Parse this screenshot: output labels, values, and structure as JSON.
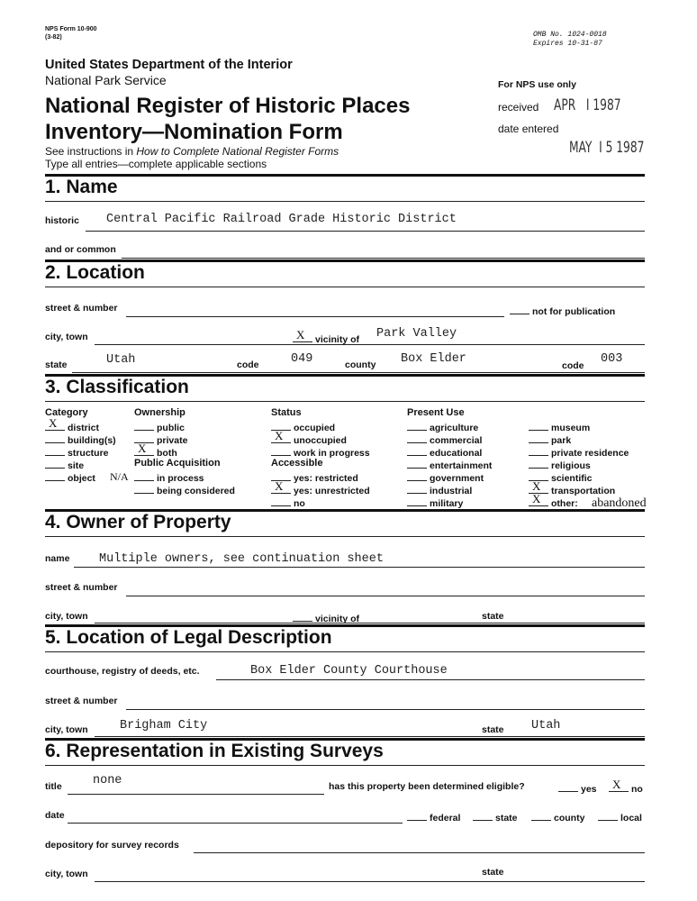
{
  "header": {
    "form_no": "NPS Form 10-900",
    "form_date": "(3-82)",
    "omb": "OMB No. 1024-0018",
    "expires": "Expires  10-31-87",
    "dept": "United States Department of the Interior",
    "service": "National Park Service",
    "title1": "National Register of Historic Places",
    "title2": "Inventory—Nomination Form",
    "instr_pre": "See instructions in ",
    "instr_it": "How to Complete National Register Forms",
    "instr2": "Type all entries—complete applicable sections",
    "nps_only": "For NPS use only",
    "received_label": "received",
    "received_value": "APR   I 1987",
    "entered_label": "date entered",
    "entered_value": "MAY  I 5 1987"
  },
  "s1": {
    "title": "1.  Name",
    "historic_label": "historic",
    "historic": "Central Pacific Railroad Grade Historic District",
    "common_label": "and or common"
  },
  "s2": {
    "title": "2.  Location",
    "street_label": "street & number",
    "nfp": "not for publication",
    "city_label": "city, town",
    "vic_mark": "X",
    "vic_label": "vicinity of",
    "vic_value": "Park Valley",
    "state_label": "state",
    "state": "Utah",
    "code_label": "code",
    "code": "049",
    "county_label": "county",
    "county": "Box Elder",
    "code2_label": "code",
    "code2": "003"
  },
  "s3": {
    "title": "3.  Classification",
    "columns": [
      [
        {
          "h": "Category"
        },
        {
          "m": "X",
          "l": "district"
        },
        {
          "m": "",
          "l": "building(s)"
        },
        {
          "m": "",
          "l": "structure"
        },
        {
          "m": "",
          "l": "site"
        },
        {
          "m": "",
          "l": "object"
        }
      ],
      [
        {
          "h": "Ownership"
        },
        {
          "m": "",
          "l": "public"
        },
        {
          "m": "",
          "l": "private"
        },
        {
          "m": "X",
          "l": "both"
        },
        {
          "h": "Public Acquisition"
        },
        {
          "m": "",
          "l": "in process"
        },
        {
          "m": "",
          "l": "being considered"
        }
      ],
      [
        {
          "h": "Status"
        },
        {
          "m": "",
          "l": "occupied"
        },
        {
          "m": "X",
          "l": "unoccupied"
        },
        {
          "m": "",
          "l": "work in progress"
        },
        {
          "h": "Accessible"
        },
        {
          "m": "",
          "l": "yes: restricted"
        },
        {
          "m": "X",
          "l": "yes: unrestricted"
        },
        {
          "m": "",
          "l": "no"
        }
      ],
      [
        {
          "h": "Present Use"
        },
        {
          "m": "",
          "l": "agriculture"
        },
        {
          "m": "",
          "l": "commercial"
        },
        {
          "m": "",
          "l": "educational"
        },
        {
          "m": "",
          "l": "entertainment"
        },
        {
          "m": "",
          "l": "government"
        },
        {
          "m": "",
          "l": "industrial"
        },
        {
          "m": "",
          "l": "military"
        }
      ],
      [
        {
          "h": ""
        },
        {
          "m": "",
          "l": "museum"
        },
        {
          "m": "",
          "l": "park"
        },
        {
          "m": "",
          "l": "private residence"
        },
        {
          "m": "",
          "l": "religious"
        },
        {
          "m": "",
          "l": "scientific"
        },
        {
          "m": "X",
          "l": "transportation"
        },
        {
          "m": "X",
          "l": "other:"
        }
      ]
    ],
    "na": "N/A",
    "other_value": "abandoned"
  },
  "s4": {
    "title": "4.  Owner of Property",
    "name_label": "name",
    "name": "Multiple owners, see continuation sheet",
    "street_label": "street & number",
    "city_label": "city, town",
    "vic_label": "vicinity of",
    "state_label": "state"
  },
  "s5": {
    "title": "5.  Location of Legal Description",
    "court_label": "courthouse, registry of deeds, etc.",
    "court": "Box Elder County Courthouse",
    "street_label": "street & number",
    "city_label": "city, town",
    "city": "Brigham City",
    "state_label": "state",
    "state": "Utah"
  },
  "s6": {
    "title": "6.  Representation in Existing Surveys",
    "title_label": "title",
    "title_value": "none",
    "eligible_q": "has this property been determined eligible?",
    "yes": "yes",
    "no_mark": "X",
    "no": "no",
    "date_label": "date",
    "federal": "federal",
    "state": "state",
    "county": "county",
    "local": "local",
    "depository_label": "depository for survey records",
    "city_label": "city, town",
    "state_label": "state"
  }
}
